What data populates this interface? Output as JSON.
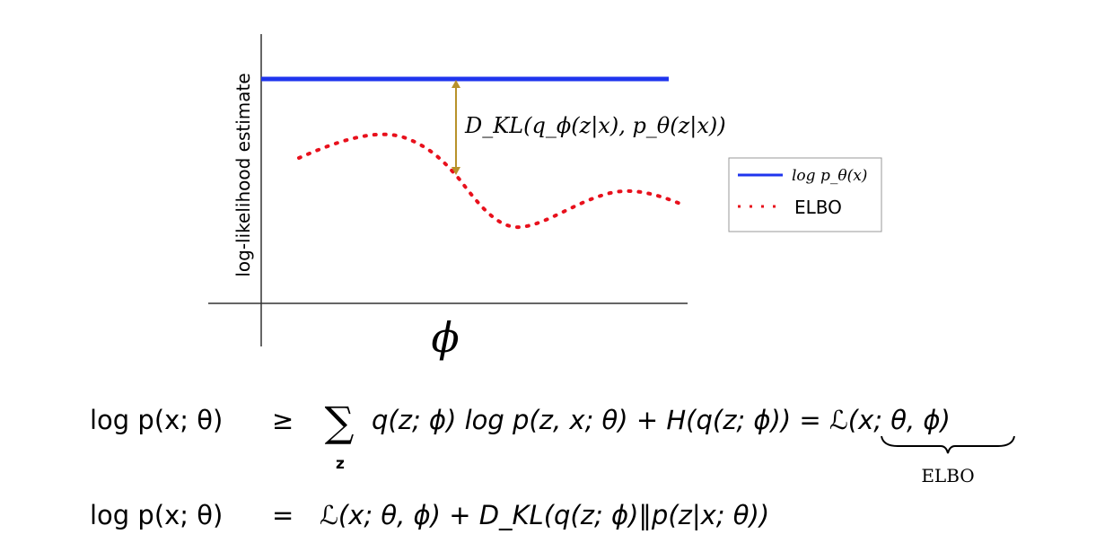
{
  "plot": {
    "y_axis_label": "log-likelihood estimate",
    "x_axis_label": "ϕ",
    "annotation": "D_KL(q_ϕ(z|x), p_θ(z|x))",
    "legend": [
      "log p_θ(x)",
      "ELBO"
    ]
  },
  "equations": [
    {
      "lhs": "log p(x; θ)",
      "relation": "≥",
      "sum_symbol": "∑",
      "sum_index": "z",
      "rhs": "q(z; ϕ) log p(z, x; θ) + H(q(z; ϕ)) = ℒ(x; θ, ϕ)",
      "brace_label": "ELBO"
    },
    {
      "lhs": "log p(x; θ)",
      "relation": "=",
      "rhs": "ℒ(x; θ, ϕ) + D_KL(q(z; ϕ)‖p(z|x; θ))"
    }
  ]
}
